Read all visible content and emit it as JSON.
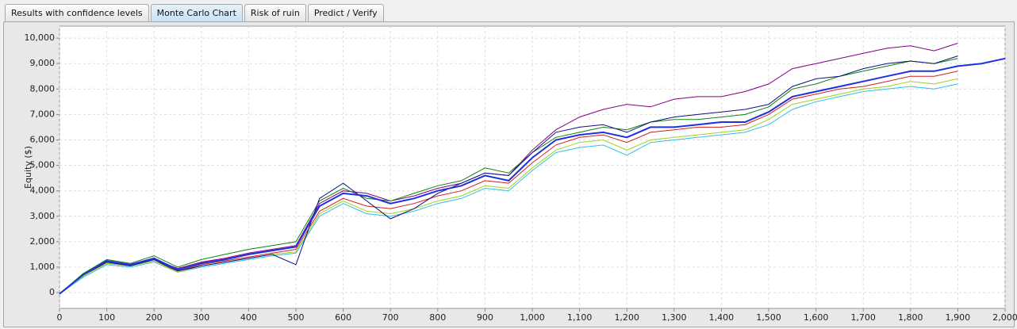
{
  "tabs": [
    {
      "label": "Results with confidence levels",
      "active": false
    },
    {
      "label": "Monte Carlo Chart",
      "active": true
    },
    {
      "label": "Risk of ruin",
      "active": false
    },
    {
      "label": "Predict / Verify",
      "active": false
    }
  ],
  "chart_data": {
    "type": "line",
    "y_label": "Equity ($)",
    "grid": true,
    "xlim": [
      0,
      2000
    ],
    "ylim": [
      -620,
      10470
    ],
    "xticks": [
      0,
      100,
      200,
      300,
      400,
      500,
      600,
      700,
      800,
      900,
      {
        "value": 1000,
        "label": "1,000"
      },
      {
        "value": 1100,
        "label": "1,100"
      },
      {
        "value": 1200,
        "label": "1,200"
      },
      {
        "value": 1300,
        "label": "1,300"
      },
      {
        "value": 1400,
        "label": "1,400"
      },
      {
        "value": 1500,
        "label": "1,500"
      },
      {
        "value": 1600,
        "label": "1,600"
      },
      {
        "value": 1700,
        "label": "1,700"
      },
      {
        "value": 1800,
        "label": "1,800"
      },
      {
        "value": 1900,
        "label": "1,900"
      },
      {
        "value": 2000,
        "label": "2,000"
      }
    ],
    "yticks": [
      0,
      {
        "value": 1000,
        "label": "1,000"
      },
      {
        "value": 2000,
        "label": "2,000"
      },
      {
        "value": 3000,
        "label": "3,000"
      },
      {
        "value": 4000,
        "label": "4,000"
      },
      {
        "value": 5000,
        "label": "5,000"
      },
      {
        "value": 6000,
        "label": "6,000"
      },
      {
        "value": 7000,
        "label": "7,000"
      },
      {
        "value": 8000,
        "label": "8,000"
      },
      {
        "value": 9000,
        "label": "9,000"
      },
      {
        "value": 10000,
        "label": "10,000"
      }
    ],
    "x": [
      0,
      50,
      100,
      150,
      200,
      250,
      300,
      350,
      400,
      450,
      500,
      550,
      600,
      650,
      700,
      750,
      800,
      850,
      900,
      950,
      1000,
      1050,
      1100,
      1150,
      1200,
      1250,
      1300,
      1350,
      1400,
      1450,
      1500,
      1550,
      1600,
      1650,
      1700,
      1750,
      1800,
      1850,
      1900,
      1950,
      2000
    ],
    "series": [
      {
        "color": "#800080",
        "values": [
          -50,
          650,
          1200,
          1050,
          1300,
          950,
          1200,
          1350,
          1550,
          1700,
          1850,
          3500,
          4000,
          3900,
          3600,
          3800,
          4100,
          4300,
          4700,
          4600,
          5600,
          6400,
          6900,
          7200,
          7400,
          7300,
          7600,
          7700,
          7700,
          7900,
          8200,
          8800,
          9000,
          9200,
          9400,
          9600,
          9700,
          9500,
          9800,
          null,
          null
        ]
      },
      {
        "color": "#108010",
        "values": [
          -50,
          750,
          1300,
          1150,
          1450,
          1000,
          1300,
          1500,
          1700,
          1850,
          2000,
          3600,
          4100,
          3700,
          3600,
          3900,
          4200,
          4400,
          4900,
          4700,
          5500,
          6100,
          6300,
          6500,
          6400,
          6700,
          6800,
          6800,
          6900,
          7000,
          7300,
          8000,
          8200,
          8500,
          8700,
          8900,
          9100,
          9000,
          9200,
          null,
          null
        ]
      },
      {
        "color": "#d02020",
        "values": [
          -50,
          650,
          1150,
          1050,
          1250,
          850,
          1100,
          1250,
          1400,
          1550,
          1700,
          3200,
          3700,
          3400,
          3300,
          3500,
          3800,
          4000,
          4400,
          4300,
          5100,
          5800,
          6100,
          6200,
          5900,
          6300,
          6400,
          6500,
          6500,
          6600,
          7000,
          7600,
          7800,
          8000,
          8100,
          8300,
          8500,
          8500,
          8700,
          null,
          null
        ]
      },
      {
        "color": "#30c0e0",
        "values": [
          -50,
          600,
          1100,
          1000,
          1200,
          800,
          1000,
          1150,
          1300,
          1450,
          1550,
          3000,
          3500,
          3100,
          3000,
          3200,
          3500,
          3700,
          4100,
          4000,
          4800,
          5500,
          5700,
          5800,
          5400,
          5900,
          6000,
          6100,
          6200,
          6300,
          6600,
          7200,
          7500,
          7700,
          7900,
          8000,
          8100,
          8000,
          8200,
          null,
          null
        ]
      },
      {
        "color": "#a0d020",
        "values": [
          -50,
          650,
          1150,
          1050,
          1250,
          800,
          1050,
          1200,
          1350,
          1500,
          1600,
          3100,
          3600,
          3200,
          3100,
          3300,
          3600,
          3800,
          4200,
          4100,
          4900,
          5600,
          5900,
          6000,
          5600,
          6000,
          6100,
          6200,
          6300,
          6400,
          6800,
          7400,
          7600,
          7800,
          8000,
          8100,
          8300,
          8200,
          8400,
          null,
          null
        ]
      },
      {
        "color": "#101080",
        "values": [
          -50,
          700,
          1200,
          1050,
          1300,
          850,
          1050,
          1200,
          1350,
          1500,
          1100,
          3700,
          4300,
          3600,
          2900,
          3300,
          3900,
          4300,
          4700,
          4600,
          5500,
          6300,
          6500,
          6600,
          6300,
          6700,
          6900,
          7000,
          7100,
          7200,
          7400,
          8100,
          8400,
          8500,
          8800,
          9000,
          9100,
          9000,
          9300,
          null,
          null
        ]
      },
      {
        "color": "#2030e0",
        "values": [
          -50,
          700,
          1250,
          1100,
          1350,
          900,
          1150,
          1300,
          1500,
          1650,
          1800,
          3400,
          3900,
          3800,
          3500,
          3700,
          4000,
          4200,
          4600,
          4400,
          5300,
          6000,
          6200,
          6300,
          6100,
          6500,
          6500,
          6600,
          6700,
          6700,
          7100,
          7700,
          7900,
          8100,
          8300,
          8500,
          8700,
          8700,
          8900,
          9000,
          9200
        ]
      }
    ]
  }
}
